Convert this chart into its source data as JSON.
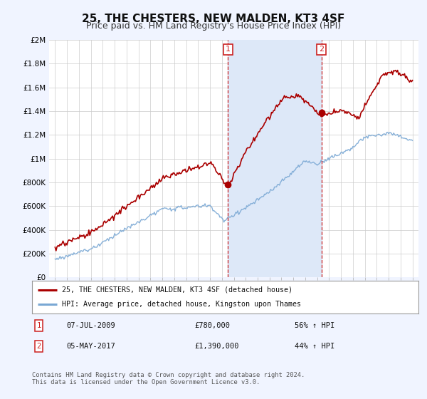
{
  "title": "25, THE CHESTERS, NEW MALDEN, KT3 4SF",
  "subtitle": "Price paid vs. HM Land Registry's House Price Index (HPI)",
  "ylim": [
    0,
    2000000
  ],
  "yticks": [
    0,
    200000,
    400000,
    600000,
    800000,
    1000000,
    1200000,
    1400000,
    1600000,
    1800000,
    2000000
  ],
  "ytick_labels": [
    "£0",
    "£200K",
    "£400K",
    "£600K",
    "£800K",
    "£1M",
    "£1.2M",
    "£1.4M",
    "£1.6M",
    "£1.8M",
    "£2M"
  ],
  "line1_color": "#aa0000",
  "line2_color": "#7aa8d4",
  "shade_color": "#dde8f8",
  "vline_color": "#cc2222",
  "sale1_year": 2009.52,
  "sale1_price": 780000,
  "sale2_year": 2017.35,
  "sale2_price": 1390000,
  "legend_label1": "25, THE CHESTERS, NEW MALDEN, KT3 4SF (detached house)",
  "legend_label2": "HPI: Average price, detached house, Kingston upon Thames",
  "footnote": "Contains HM Land Registry data © Crown copyright and database right 2024.\nThis data is licensed under the Open Government Licence v3.0.",
  "bg_color": "#f0f4ff",
  "plot_bg": "#ffffff",
  "title_fontsize": 11,
  "subtitle_fontsize": 9,
  "tick_fontsize": 7.5,
  "xstart": 1994.5,
  "xend": 2025.5
}
